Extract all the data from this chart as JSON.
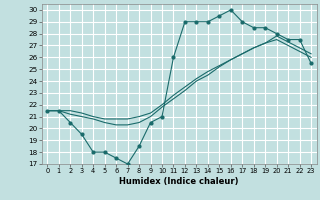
{
  "title": "",
  "xlabel": "Humidex (Indice chaleur)",
  "xlim": [
    -0.5,
    23.5
  ],
  "ylim": [
    17,
    30.5
  ],
  "yticks": [
    17,
    18,
    19,
    20,
    21,
    22,
    23,
    24,
    25,
    26,
    27,
    28,
    29,
    30
  ],
  "xticks": [
    0,
    1,
    2,
    3,
    4,
    5,
    6,
    7,
    8,
    9,
    10,
    11,
    12,
    13,
    14,
    15,
    16,
    17,
    18,
    19,
    20,
    21,
    22,
    23
  ],
  "bg_color": "#c2e0e0",
  "line_color": "#1a6b6b",
  "grid_color": "#ffffff",
  "line1_x": [
    0,
    1,
    2,
    3,
    4,
    5,
    6,
    7,
    8,
    9,
    10,
    11,
    12,
    13,
    14,
    15,
    16,
    17,
    18,
    19,
    20,
    21,
    22,
    23
  ],
  "line1_y": [
    21.5,
    21.5,
    20.5,
    19.5,
    18.0,
    18.0,
    17.5,
    17.0,
    18.5,
    20.5,
    21.0,
    26.0,
    29.0,
    29.0,
    29.0,
    29.5,
    30.0,
    29.0,
    28.5,
    28.5,
    28.0,
    27.5,
    27.5,
    25.5
  ],
  "line2_x": [
    0,
    1,
    2,
    3,
    4,
    5,
    6,
    7,
    8,
    9,
    10,
    11,
    12,
    13,
    14,
    15,
    16,
    17,
    18,
    19,
    20,
    21,
    22,
    23
  ],
  "line2_y": [
    21.5,
    21.5,
    21.2,
    21.0,
    20.8,
    20.5,
    20.3,
    20.3,
    20.5,
    21.0,
    21.8,
    22.5,
    23.2,
    24.0,
    24.5,
    25.2,
    25.8,
    26.3,
    26.8,
    27.2,
    27.5,
    27.0,
    26.5,
    26.0
  ],
  "line3_x": [
    0,
    1,
    2,
    3,
    4,
    5,
    6,
    7,
    8,
    9,
    10,
    11,
    12,
    13,
    14,
    15,
    16,
    17,
    18,
    19,
    20,
    21,
    22,
    23
  ],
  "line3_y": [
    21.5,
    21.5,
    21.5,
    21.3,
    21.0,
    20.8,
    20.8,
    20.8,
    21.0,
    21.3,
    22.0,
    22.8,
    23.5,
    24.2,
    24.8,
    25.3,
    25.8,
    26.3,
    26.8,
    27.2,
    27.8,
    27.3,
    26.8,
    26.3
  ]
}
